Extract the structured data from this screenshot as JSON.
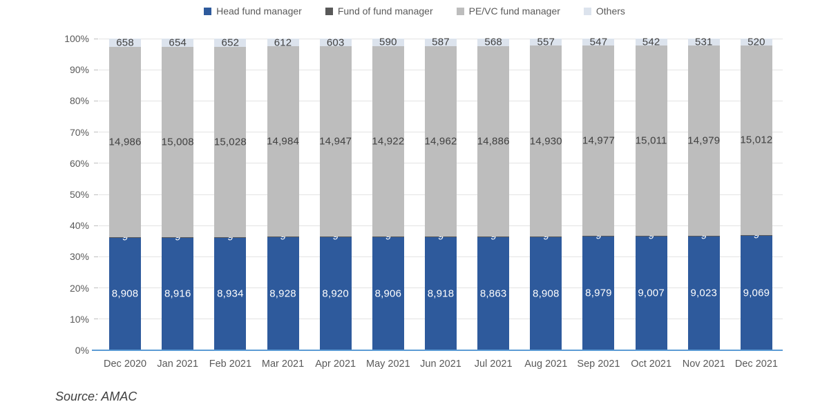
{
  "page": {
    "source_note": "Source: AMAC"
  },
  "colors": {
    "head": "#2E5A9C",
    "fof": "#595959",
    "pevc": "#BDBDBD",
    "others": "#DCE3ED",
    "axis_line": "#5B9BD5",
    "gridline": "#E3E3E3",
    "tick_mark": "#BFBFBF",
    "label_dark": "#404040",
    "label_light": "#FFFFFF",
    "tick_text": "#595959"
  },
  "chart_data": {
    "type": "bar",
    "variant": "100%-stacked-column",
    "title": "",
    "xlabel": "",
    "ylabel": "",
    "legend_position": "top",
    "gridlines": true,
    "categories": [
      "Dec 2020",
      "Jan 2021",
      "Feb 2021",
      "Mar 2021",
      "Apr 2021",
      "May 2021",
      "Jun 2021",
      "Jul 2021",
      "Aug 2021",
      "Sep 2021",
      "Oct 2021",
      "Nov 2021",
      "Dec 2021"
    ],
    "series": [
      {
        "name": "Head fund manager",
        "color_key": "head",
        "label_color_key": "label_light",
        "values": [
          8908,
          8916,
          8934,
          8928,
          8920,
          8906,
          8918,
          8863,
          8908,
          8979,
          9007,
          9023,
          9069
        ]
      },
      {
        "name": "Fund of fund manager",
        "color_key": "fof",
        "label_color_key": "label_light",
        "values": [
          9,
          9,
          9,
          9,
          9,
          9,
          9,
          9,
          9,
          9,
          9,
          9,
          9
        ]
      },
      {
        "name": "PE/VC fund manager",
        "color_key": "pevc",
        "label_color_key": "label_dark",
        "values": [
          14986,
          15008,
          15028,
          14984,
          14947,
          14922,
          14962,
          14886,
          14930,
          14977,
          15011,
          14979,
          15012
        ]
      },
      {
        "name": "Others",
        "color_key": "others",
        "label_color_key": "label_dark",
        "values": [
          658,
          654,
          652,
          612,
          603,
          590,
          587,
          568,
          557,
          547,
          542,
          531,
          520
        ]
      }
    ],
    "y_axis": {
      "min": 0,
      "max": 100,
      "ticks": [
        "0%",
        "10%",
        "20%",
        "30%",
        "40%",
        "50%",
        "60%",
        "70%",
        "80%",
        "90%",
        "100%"
      ]
    }
  }
}
